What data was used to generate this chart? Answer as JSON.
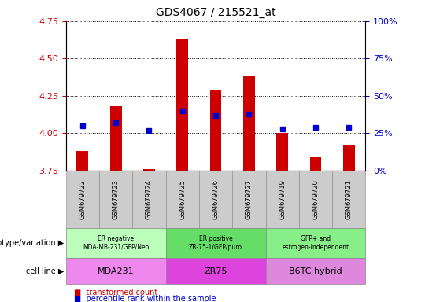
{
  "title": "GDS4067 / 215521_at",
  "samples": [
    "GSM679722",
    "GSM679723",
    "GSM679724",
    "GSM679725",
    "GSM679726",
    "GSM679727",
    "GSM679719",
    "GSM679720",
    "GSM679721"
  ],
  "red_values": [
    3.88,
    4.18,
    3.76,
    4.63,
    4.29,
    4.38,
    4.0,
    3.84,
    3.92
  ],
  "blue_y2_values": [
    30,
    32,
    27,
    40,
    37,
    38,
    28,
    29,
    29
  ],
  "ylim": [
    3.75,
    4.75
  ],
  "y2lim": [
    0,
    100
  ],
  "yticks": [
    3.75,
    4.0,
    4.25,
    4.5,
    4.75
  ],
  "y2ticks": [
    0,
    25,
    50,
    75,
    100
  ],
  "red_color": "#cc0000",
  "blue_color": "#0000cc",
  "bar_bottom": 3.75,
  "bar_width": 0.35,
  "groups": [
    {
      "label_top": "ER negative\nMDA-MB-231/GFP/Neo",
      "label_bottom": "MDA231",
      "color_top": "#bbffbb",
      "color_bottom": "#ee88ee",
      "indices": [
        0,
        1,
        2
      ]
    },
    {
      "label_top": "ER positive\nZR-75-1/GFP/puro",
      "label_bottom": "ZR75",
      "color_top": "#66dd66",
      "color_bottom": "#dd44dd",
      "indices": [
        3,
        4,
        5
      ]
    },
    {
      "label_top": "GFP+ and\nestrogen-independent",
      "label_bottom": "B6TC hybrid",
      "color_top": "#88ee88",
      "color_bottom": "#dd88dd",
      "indices": [
        6,
        7,
        8
      ]
    }
  ],
  "plot_bg": "#ffffff",
  "sample_row_color": "#cccccc",
  "legend": [
    {
      "color": "#cc0000",
      "label": "transformed count"
    },
    {
      "color": "#0000cc",
      "label": "percentile rank within the sample"
    }
  ]
}
